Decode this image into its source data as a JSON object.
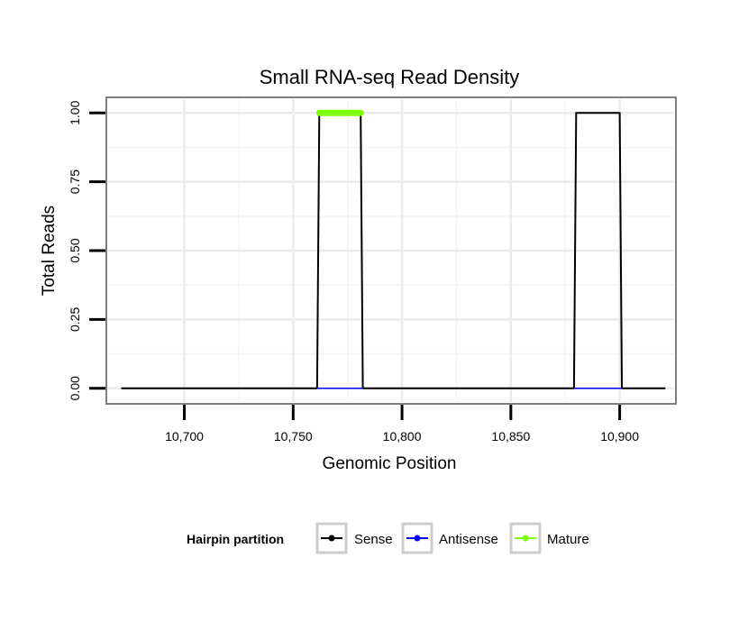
{
  "chart_data": {
    "type": "line",
    "title": "Small RNA-seq Read Density",
    "xlabel": "Genomic Position",
    "ylabel": "Total Reads",
    "xlim": [
      10665,
      10925
    ],
    "ylim": [
      -0.05,
      1.05
    ],
    "x_ticks": [
      10700,
      10750,
      10800,
      10850,
      10900
    ],
    "x_tick_labels": [
      "10,700",
      "10,750",
      "10,800",
      "10,850",
      "10,900"
    ],
    "y_ticks": [
      0,
      0.25,
      0.5,
      0.75,
      1.0
    ],
    "y_tick_labels": [
      "0.00",
      "0.25",
      "0.50",
      "0.75",
      "1.00"
    ],
    "grid": true,
    "legend": {
      "title": "Hairpin partition",
      "position": "bottom",
      "entries": [
        "Sense",
        "Antisense",
        "Mature"
      ]
    },
    "series": [
      {
        "name": "Sense",
        "color": "#000000",
        "x": [
          10671,
          10761,
          10762,
          10781,
          10782,
          10879,
          10880,
          10900,
          10901,
          10921
        ],
        "y": [
          0,
          0,
          1,
          1,
          0,
          0,
          1,
          1,
          0,
          0
        ]
      },
      {
        "name": "Antisense",
        "color": "#0000ff",
        "segments": [
          {
            "x": [
              10761,
              10782
            ],
            "y": [
              0,
              0
            ]
          },
          {
            "x": [
              10879,
              10901
            ],
            "y": [
              0,
              0
            ]
          }
        ]
      },
      {
        "name": "Mature",
        "color": "#7fff00",
        "segments": [
          {
            "x": [
              10762,
              10781
            ],
            "y": [
              1,
              1
            ]
          }
        ]
      }
    ]
  }
}
